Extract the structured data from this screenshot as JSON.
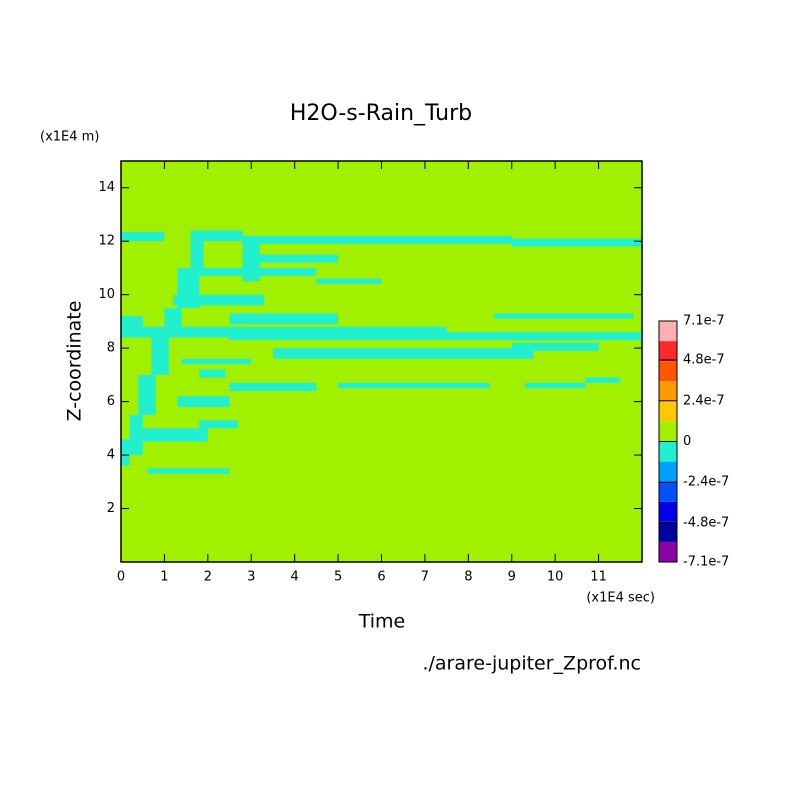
{
  "chart_data": {
    "type": "contour",
    "title": "H2O-s-Rain_Turb",
    "x_label": "Time",
    "x_unit": "(x1E4 sec)",
    "y_label": "Z-coordinate",
    "y_unit": "(x1E4 m)",
    "source": "./arare-jupiter_Zprof.nc",
    "xlim": [
      0,
      12
    ],
    "ylim": [
      0,
      15
    ],
    "xticks": [
      0,
      1,
      2,
      3,
      4,
      5,
      6,
      7,
      8,
      9,
      10,
      11
    ],
    "yticks": [
      2,
      4,
      6,
      8,
      10,
      12,
      14
    ],
    "colorbar": {
      "lim": [
        -7.1e-07,
        7.1e-07
      ],
      "ticks": [
        7.1e-07,
        4.8e-07,
        2.4e-07,
        0,
        -2.4e-07,
        -4.8e-07,
        -7.1e-07
      ],
      "colors": [
        "#8a00a8",
        "#0000a0",
        "#0000e8",
        "#0050ff",
        "#00a0ff",
        "#20f0d0",
        "#a0f000",
        "#ffc800",
        "#ff9a00",
        "#ff5500",
        "#ff2a2a",
        "#ffb0b0"
      ]
    },
    "base_value": 0,
    "cells": [
      {
        "x": [
          0,
          1.0
        ],
        "z": [
          12.0,
          12.35
        ],
        "value": -6e-08
      },
      {
        "x": [
          1.6,
          2.8
        ],
        "z": [
          12.0,
          12.4
        ],
        "value": -6e-08
      },
      {
        "x": [
          3.2,
          5.5
        ],
        "z": [
          11.9,
          12.2
        ],
        "value": -6e-08
      },
      {
        "x": [
          5.5,
          9
        ],
        "z": [
          11.9,
          12.2
        ],
        "value": -6e-08
      },
      {
        "x": [
          9,
          12
        ],
        "z": [
          11.8,
          12.1
        ],
        "value": -6e-08
      },
      {
        "x": [
          3,
          5
        ],
        "z": [
          11.2,
          11.5
        ],
        "value": -6e-08
      },
      {
        "x": [
          1.8,
          4.5
        ],
        "z": [
          10.7,
          11.0
        ],
        "value": -6e-08
      },
      {
        "x": [
          4.5,
          6
        ],
        "z": [
          10.4,
          10.6
        ],
        "value": -6e-08
      },
      {
        "x": [
          1.2,
          3.3
        ],
        "z": [
          9.6,
          10.0
        ],
        "value": -6e-08
      },
      {
        "x": [
          8.6,
          11.8
        ],
        "z": [
          9.1,
          9.3
        ],
        "value": -6e-08
      },
      {
        "x": [
          0,
          0.5
        ],
        "z": [
          8.8,
          9.2
        ],
        "value": -6e-08
      },
      {
        "x": [
          2.5,
          5
        ],
        "z": [
          8.9,
          9.3
        ],
        "value": -6e-08
      },
      {
        "x": [
          0,
          2.8
        ],
        "z": [
          8.4,
          8.8
        ],
        "value": -6e-08
      },
      {
        "x": [
          2.5,
          7.5
        ],
        "z": [
          8.3,
          8.8
        ],
        "value": -6e-08
      },
      {
        "x": [
          7.5,
          12
        ],
        "z": [
          8.3,
          8.6
        ],
        "value": -6e-08
      },
      {
        "x": [
          3.5,
          9.5
        ],
        "z": [
          7.6,
          8.0
        ],
        "value": -6e-08
      },
      {
        "x": [
          9,
          11
        ],
        "z": [
          7.9,
          8.2
        ],
        "value": -6e-08
      },
      {
        "x": [
          1.4,
          3.0
        ],
        "z": [
          7.4,
          7.6
        ],
        "value": -6e-08
      },
      {
        "x": [
          1.8,
          2.4
        ],
        "z": [
          6.9,
          7.2
        ],
        "value": -6e-08
      },
      {
        "x": [
          2.5,
          4.5
        ],
        "z": [
          6.4,
          6.7
        ],
        "value": -6e-08
      },
      {
        "x": [
          5,
          8.5
        ],
        "z": [
          6.5,
          6.7
        ],
        "value": -6e-08
      },
      {
        "x": [
          9.3,
          10.7
        ],
        "z": [
          6.5,
          6.7
        ],
        "value": -6e-08
      },
      {
        "x": [
          10.7,
          11.5
        ],
        "z": [
          6.7,
          6.9
        ],
        "value": -6e-08
      },
      {
        "x": [
          1.3,
          2.5
        ],
        "z": [
          5.8,
          6.2
        ],
        "value": -6e-08
      },
      {
        "x": [
          1.8,
          2.7
        ],
        "z": [
          5.0,
          5.3
        ],
        "value": -6e-08
      },
      {
        "x": [
          0.5,
          2.0
        ],
        "z": [
          4.5,
          5.0
        ],
        "value": -6e-08
      },
      {
        "x": [
          0.6,
          2.5
        ],
        "z": [
          3.3,
          3.5
        ],
        "value": -6e-08
      },
      {
        "x": [
          0,
          0.2
        ],
        "z": [
          3.6,
          4.6
        ],
        "value": -6e-08
      },
      {
        "x": [
          0.2,
          0.5
        ],
        "z": [
          4.0,
          5.5
        ],
        "value": -6e-08
      },
      {
        "x": [
          0.4,
          0.8
        ],
        "z": [
          5.5,
          7.0
        ],
        "value": -6e-08
      },
      {
        "x": [
          0.7,
          1.1
        ],
        "z": [
          7.0,
          8.5
        ],
        "value": -6e-08
      },
      {
        "x": [
          1.0,
          1.4
        ],
        "z": [
          8.5,
          9.5
        ],
        "value": -6e-08
      },
      {
        "x": [
          1.3,
          1.8
        ],
        "z": [
          9.5,
          11.0
        ],
        "value": -6e-08
      },
      {
        "x": [
          1.6,
          1.9
        ],
        "z": [
          11.0,
          12.4
        ],
        "value": -6e-08
      },
      {
        "x": [
          2.8,
          3.2
        ],
        "z": [
          10.5,
          12.2
        ],
        "value": -6e-08
      }
    ]
  }
}
